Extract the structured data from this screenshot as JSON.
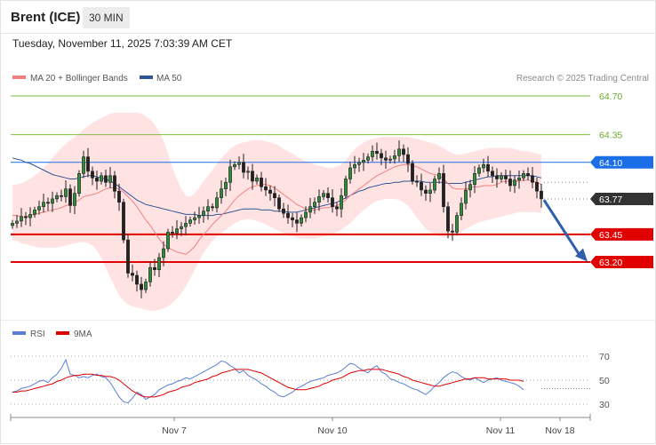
{
  "header": {
    "symbol": "Brent (ICE)",
    "timeframe": "30 MIN"
  },
  "datetime": "Tuesday, November 11, 2025 7:03:39 AM CET",
  "legend": {
    "ma20_label": "MA 20 + Bollinger Bands",
    "ma50_label": "MA 50",
    "ma20_color": "#f08080",
    "ma50_color": "#2f5597"
  },
  "copyright": "Research © 2025 Trading Central",
  "rsi_legend": {
    "rsi_label": "RSI",
    "ma_label": "9MA",
    "rsi_color": "#5b7fd6",
    "ma_color": "#e00000"
  },
  "chart_data": [
    {
      "type": "line",
      "title": "Brent (ICE)",
      "y_range": [
        63.0,
        64.8
      ],
      "levels": [
        {
          "value": 64.7,
          "label": "64.70",
          "kind": "resistance",
          "color": "#7fbf3f"
        },
        {
          "value": 64.35,
          "label": "64.35",
          "kind": "resistance",
          "color": "#7fbf3f"
        },
        {
          "value": 64.1,
          "label": "64.10",
          "kind": "pivot",
          "color": "#1a6ee8"
        },
        {
          "value": 63.77,
          "label": "63.77",
          "kind": "last-price",
          "color": "#333333"
        },
        {
          "value": 63.45,
          "label": "63.45",
          "kind": "support",
          "color": "#e00000"
        },
        {
          "value": 63.2,
          "label": "63.20",
          "kind": "support",
          "color": "#e00000"
        }
      ],
      "forecast_arrow": {
        "from_value": 63.76,
        "to_value": 63.22,
        "direction": "down",
        "color": "#2f5fa8"
      },
      "x_ticks": [
        "Nov 7",
        "Nov 10",
        "Nov 11",
        "Nov 18"
      ],
      "closes": [
        63.55,
        63.57,
        63.61,
        63.6,
        63.63,
        63.67,
        63.7,
        63.74,
        63.73,
        63.77,
        63.8,
        63.79,
        63.86,
        63.71,
        63.82,
        64.0,
        64.15,
        64.02,
        63.96,
        63.93,
        63.98,
        63.92,
        63.98,
        63.84,
        63.74,
        63.4,
        63.1,
        63.08,
        63.0,
        62.95,
        63.02,
        63.15,
        63.13,
        63.24,
        63.32,
        63.47,
        63.46,
        63.5,
        63.52,
        63.55,
        63.58,
        63.6,
        63.62,
        63.66,
        63.7,
        63.69,
        63.78,
        63.86,
        63.92,
        64.06,
        64.08,
        64.1,
        64.01,
        64.02,
        63.93,
        63.96,
        63.88,
        63.85,
        63.82,
        63.78,
        63.68,
        63.64,
        63.6,
        63.58,
        63.55,
        63.6,
        63.65,
        63.7,
        63.74,
        63.79,
        63.82,
        63.78,
        63.7,
        63.68,
        63.8,
        63.95,
        64.05,
        64.08,
        64.1,
        64.12,
        64.15,
        64.2,
        64.18,
        64.14,
        64.12,
        64.13,
        64.16,
        64.22,
        64.17,
        64.09,
        63.93,
        63.92,
        63.85,
        63.82,
        63.85,
        63.95,
        64.0,
        63.7,
        63.48,
        63.47,
        63.62,
        63.73,
        63.85,
        63.9,
        64.0,
        64.05,
        64.08,
        64.02,
        63.98,
        63.95,
        63.98,
        63.95,
        63.89,
        63.94,
        63.96,
        64.0,
        63.98,
        63.92,
        63.84,
        63.77
      ],
      "ma20": [
        63.62,
        63.62,
        63.61,
        63.61,
        63.62,
        63.63,
        63.64,
        63.65,
        63.66,
        63.67,
        63.68,
        63.69,
        63.71,
        63.72,
        63.74,
        63.76,
        63.79,
        63.8,
        63.81,
        63.82,
        63.84,
        63.86,
        63.87,
        63.87,
        63.86,
        63.83,
        63.79,
        63.75,
        63.7,
        63.64,
        63.58,
        63.53,
        63.47,
        63.41,
        63.36,
        63.33,
        63.31,
        63.29,
        63.28,
        63.27,
        63.3,
        63.34,
        63.4,
        63.45,
        63.49,
        63.54,
        63.58,
        63.62,
        63.66,
        63.71,
        63.76,
        63.8,
        63.83,
        63.86,
        63.88,
        63.89,
        63.9,
        63.9,
        63.89,
        63.87,
        63.84,
        63.81,
        63.78,
        63.75,
        63.72,
        63.7,
        63.68,
        63.67,
        63.67,
        63.68,
        63.69,
        63.69,
        63.7,
        63.71,
        63.73,
        63.76,
        63.8,
        63.83,
        63.86,
        63.89,
        63.92,
        63.95,
        63.98,
        64.0,
        64.02,
        64.04,
        64.06,
        64.07,
        64.08,
        64.08,
        64.07,
        64.06,
        64.04,
        64.02,
        64.0,
        63.99,
        63.98,
        63.95,
        63.91,
        63.87,
        63.86,
        63.86,
        63.86,
        63.87,
        63.88,
        63.88,
        63.89,
        63.89,
        63.89,
        63.9,
        63.92,
        63.93,
        63.93,
        63.93,
        63.93,
        63.94,
        63.94,
        63.93,
        63.92,
        63.9
      ],
      "bb_upper": [
        63.9,
        63.9,
        63.91,
        63.93,
        63.95,
        63.98,
        64.01,
        64.05,
        64.09,
        64.14,
        64.19,
        64.23,
        64.27,
        64.3,
        64.33,
        64.36,
        64.4,
        64.43,
        64.46,
        64.48,
        64.5,
        64.52,
        64.54,
        64.55,
        64.55,
        64.55,
        64.55,
        64.55,
        64.55,
        64.54,
        64.52,
        64.49,
        64.44,
        64.38,
        64.3,
        64.18,
        64.05,
        63.95,
        63.86,
        63.8,
        63.79,
        63.82,
        63.87,
        63.93,
        63.98,
        64.03,
        64.09,
        64.14,
        64.18,
        64.22,
        64.25,
        64.27,
        64.28,
        64.29,
        64.3,
        64.3,
        64.3,
        64.29,
        64.28,
        64.27,
        64.25,
        64.22,
        64.2,
        64.18,
        64.15,
        64.13,
        64.11,
        64.1,
        64.08,
        64.07,
        64.06,
        64.05,
        64.05,
        64.06,
        64.08,
        64.12,
        64.17,
        64.22,
        64.25,
        64.28,
        64.3,
        64.31,
        64.32,
        64.33,
        64.33,
        64.33,
        64.33,
        64.33,
        64.33,
        64.33,
        64.32,
        64.31,
        64.3,
        64.29,
        64.28,
        64.27,
        64.25,
        64.23,
        64.2,
        64.18,
        64.17,
        64.17,
        64.18,
        64.19,
        64.2,
        64.21,
        64.22,
        64.23,
        64.23,
        64.23,
        64.23,
        64.23,
        64.23,
        64.22,
        64.21,
        64.2,
        64.2,
        64.19,
        64.18,
        64.17
      ],
      "bb_lower": [
        63.4,
        63.39,
        63.37,
        63.36,
        63.35,
        63.34,
        63.33,
        63.33,
        63.33,
        63.33,
        63.33,
        63.34,
        63.35,
        63.36,
        63.37,
        63.38,
        63.38,
        63.37,
        63.35,
        63.3,
        63.24,
        63.15,
        63.06,
        62.98,
        62.9,
        62.85,
        62.82,
        62.8,
        62.79,
        62.78,
        62.77,
        62.76,
        62.76,
        62.77,
        62.78,
        62.8,
        62.83,
        62.87,
        62.92,
        62.98,
        63.05,
        63.13,
        63.21,
        63.28,
        63.34,
        63.39,
        63.43,
        63.46,
        63.49,
        63.52,
        63.55,
        63.57,
        63.58,
        63.59,
        63.58,
        63.57,
        63.56,
        63.54,
        63.52,
        63.5,
        63.48,
        63.46,
        63.44,
        63.43,
        63.42,
        63.41,
        63.41,
        63.41,
        63.41,
        63.42,
        63.43,
        63.44,
        63.45,
        63.47,
        63.49,
        63.52,
        63.55,
        63.59,
        63.63,
        63.67,
        63.7,
        63.73,
        63.75,
        63.76,
        63.77,
        63.77,
        63.77,
        63.76,
        63.74,
        63.71,
        63.66,
        63.6,
        63.55,
        63.5,
        63.47,
        63.45,
        63.43,
        63.42,
        63.42,
        63.43,
        63.45,
        63.47,
        63.5,
        63.52,
        63.54,
        63.56,
        63.57,
        63.58,
        63.59,
        63.6,
        63.61,
        63.62,
        63.63,
        63.64,
        63.65,
        63.65,
        63.65,
        63.65,
        63.65,
        63.64
      ],
      "ma50": [
        64.14,
        64.13,
        64.12,
        64.1,
        64.09,
        64.07,
        64.05,
        64.03,
        64.01,
        63.99,
        63.98,
        63.97,
        63.96,
        63.95,
        63.95,
        63.96,
        63.97,
        63.98,
        63.98,
        63.97,
        63.96,
        63.95,
        63.93,
        63.91,
        63.88,
        63.85,
        63.82,
        63.79,
        63.76,
        63.74,
        63.72,
        63.71,
        63.7,
        63.69,
        63.68,
        63.67,
        63.66,
        63.65,
        63.64,
        63.63,
        63.63,
        63.63,
        63.62,
        63.62,
        63.62,
        63.62,
        63.63,
        63.63,
        63.64,
        63.65,
        63.66,
        63.67,
        63.68,
        63.68,
        63.68,
        63.68,
        63.67,
        63.67,
        63.67,
        63.66,
        63.66,
        63.66,
        63.65,
        63.65,
        63.65,
        63.66,
        63.67,
        63.68,
        63.69,
        63.7,
        63.71,
        63.72,
        63.73,
        63.74,
        63.76,
        63.78,
        63.8,
        63.82,
        63.84,
        63.85,
        63.87,
        63.88,
        63.89,
        63.9,
        63.91,
        63.91,
        63.92,
        63.92,
        63.93,
        63.93,
        63.93,
        63.93,
        63.93,
        63.92,
        63.92,
        63.92,
        63.92,
        63.92,
        63.91,
        63.91,
        63.91,
        63.91,
        63.92,
        63.93,
        63.94,
        63.95,
        63.96,
        63.97,
        63.97,
        63.98,
        63.98,
        63.98,
        63.98,
        63.98,
        63.98,
        63.98,
        63.98,
        63.98,
        63.97,
        63.96
      ]
    },
    {
      "type": "line",
      "title": "RSI",
      "y_range": [
        20,
        80
      ],
      "y_ticks": [
        70,
        50,
        30
      ],
      "reference_value": 43,
      "series": [
        {
          "name": "RSI",
          "values": [
            40,
            41,
            43,
            44,
            45,
            47,
            49,
            50,
            48,
            52,
            55,
            60,
            67,
            55,
            54,
            52,
            53,
            52,
            54,
            55,
            53,
            52,
            48,
            42,
            36,
            32,
            31,
            35,
            40,
            38,
            34,
            36,
            38,
            42,
            44,
            46,
            47,
            49,
            50,
            52,
            51,
            53,
            55,
            57,
            59,
            61,
            63,
            66,
            65,
            62,
            60,
            56,
            58,
            54,
            52,
            50,
            47,
            45,
            42,
            40,
            37,
            36,
            38,
            40,
            43,
            45,
            47,
            49,
            50,
            51,
            52,
            54,
            55,
            56,
            58,
            61,
            64,
            63,
            60,
            58,
            56,
            60,
            62,
            57,
            55,
            51,
            50,
            48,
            47,
            45,
            43,
            42,
            40,
            38,
            41,
            45,
            48,
            52,
            55,
            57,
            56,
            53,
            51,
            50,
            52,
            50,
            48,
            50,
            51,
            52,
            50,
            49,
            48,
            47,
            45,
            42
          ]
        },
        {
          "name": "9MA",
          "values": [
            40,
            40,
            41,
            41,
            42,
            43,
            44,
            45,
            46,
            47,
            49,
            50,
            52,
            53,
            54,
            54,
            55,
            55,
            55,
            54,
            54,
            53,
            53,
            52,
            50,
            47,
            44,
            41,
            39,
            37,
            36,
            36,
            36,
            37,
            38,
            40,
            41,
            42,
            44,
            45,
            46,
            48,
            49,
            50,
            51,
            53,
            54,
            56,
            57,
            58,
            59,
            59,
            59,
            59,
            58,
            57,
            56,
            54,
            52,
            50,
            48,
            46,
            44,
            43,
            42,
            42,
            42,
            43,
            44,
            45,
            47,
            48,
            50,
            51,
            52,
            54,
            56,
            57,
            58,
            58,
            59,
            59,
            59,
            59,
            58,
            57,
            56,
            55,
            53,
            52,
            50,
            49,
            48,
            47,
            46,
            45,
            45,
            46,
            47,
            48,
            49,
            50,
            51,
            51,
            52,
            52,
            52,
            51,
            51,
            51,
            51,
            51,
            50,
            50,
            50,
            49
          ]
        }
      ]
    }
  ]
}
